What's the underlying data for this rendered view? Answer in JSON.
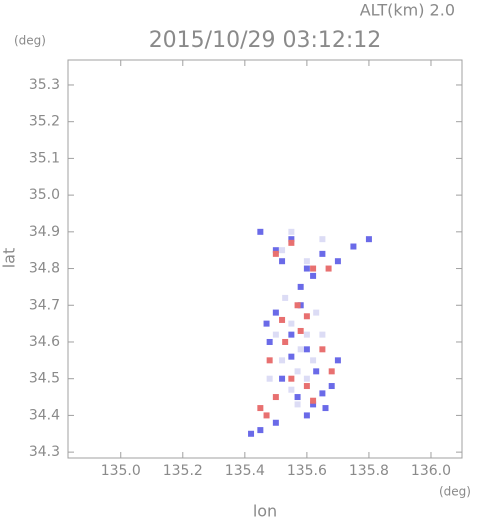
{
  "chart_data": {
    "type": "scatter",
    "title": "2015/10/29 03:12:12",
    "subtitle": "ALT(km) 2.0",
    "y_unit": "(deg)",
    "x_unit": "(deg)",
    "xlabel": "lon",
    "ylabel": "lat",
    "xlim": [
      134.83,
      136.1
    ],
    "ylim": [
      34.284,
      35.368
    ],
    "xticks": [
      {
        "value": 135,
        "label": "135.0"
      },
      135.2,
      135.4,
      135.6,
      135.8,
      {
        "value": 136,
        "label": "136.0"
      }
    ],
    "yticks": [
      34.3,
      34.4,
      34.5,
      34.6,
      34.7,
      34.8,
      34.9,
      {
        "value": 35,
        "label": "35.0"
      },
      35.1,
      35.2,
      35.3
    ],
    "series": [
      {
        "color": "#dcdcf5",
        "x": [
          135.5,
          135.55,
          135.6,
          135.58,
          135.52,
          135.57,
          135.62,
          135.55,
          135.6,
          135.5,
          135.65,
          135.53,
          135.58,
          135.63,
          135.48,
          135.57,
          135.6,
          135.52,
          135.65,
          135.55
        ],
        "y": [
          34.68,
          34.65,
          34.62,
          34.58,
          34.55,
          34.52,
          34.55,
          34.47,
          34.5,
          34.62,
          34.62,
          34.72,
          34.7,
          34.68,
          34.5,
          34.43,
          34.82,
          34.85,
          34.88,
          34.9
        ]
      },
      {
        "color": "#6a6ae8",
        "x": [
          135.45,
          135.5,
          135.52,
          135.55,
          135.6,
          135.62,
          135.65,
          135.58,
          135.7,
          135.75,
          135.8,
          135.5,
          135.48,
          135.55,
          135.6,
          135.63,
          135.68,
          135.52,
          135.57,
          135.62,
          135.66,
          135.47,
          135.42,
          135.45,
          135.5,
          135.6,
          135.55,
          135.65,
          135.7,
          135.58
        ],
        "y": [
          34.9,
          34.85,
          34.82,
          34.88,
          34.8,
          34.78,
          34.84,
          34.75,
          34.82,
          34.86,
          34.88,
          34.68,
          34.6,
          34.56,
          34.58,
          34.52,
          34.48,
          34.5,
          34.45,
          34.43,
          34.42,
          34.65,
          34.35,
          34.36,
          34.38,
          34.4,
          34.62,
          34.46,
          34.55,
          34.7
        ]
      },
      {
        "color": "#e87070",
        "x": [
          135.5,
          135.55,
          135.62,
          135.67,
          135.52,
          135.58,
          135.6,
          135.48,
          135.55,
          135.65,
          135.45,
          135.5,
          135.62,
          135.57,
          135.53,
          135.68,
          135.6,
          135.47
        ],
        "y": [
          34.84,
          34.87,
          34.8,
          34.8,
          34.66,
          34.63,
          34.67,
          34.55,
          34.5,
          34.58,
          34.42,
          34.45,
          34.44,
          34.7,
          34.6,
          34.52,
          34.48,
          34.4
        ]
      }
    ]
  }
}
